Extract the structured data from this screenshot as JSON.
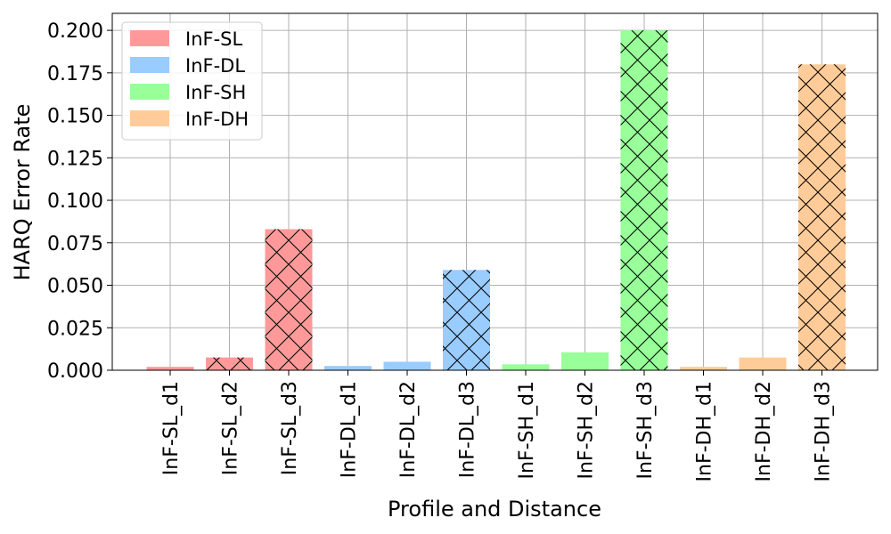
{
  "chart_data": {
    "type": "bar",
    "xlabel": "Profile and Distance",
    "ylabel": "HARQ Error Rate",
    "ylim": [
      0,
      0.21
    ],
    "yticks": [
      0.0,
      0.025,
      0.05,
      0.075,
      0.1,
      0.125,
      0.15,
      0.175,
      0.2
    ],
    "ytick_labels": [
      "0.000",
      "0.025",
      "0.050",
      "0.075",
      "0.100",
      "0.125",
      "0.150",
      "0.175",
      "0.200"
    ],
    "grid": true,
    "legend_position": "top-left",
    "categories": [
      "InF-SL_d1",
      "InF-SL_d2",
      "InF-SL_d3",
      "InF-DL_d1",
      "InF-DL_d2",
      "InF-DL_d3",
      "InF-SH_d1",
      "InF-SH_d2",
      "InF-SH_d3",
      "InF-DH_d1",
      "InF-DH_d2",
      "InF-DH_d3"
    ],
    "values": [
      0.002,
      0.0075,
      0.083,
      0.0025,
      0.005,
      0.059,
      0.0035,
      0.0105,
      0.2,
      0.002,
      0.0075,
      0.18
    ],
    "hatched": [
      false,
      true,
      true,
      false,
      false,
      true,
      false,
      false,
      true,
      false,
      false,
      true
    ],
    "bar_group": [
      0,
      0,
      0,
      1,
      1,
      1,
      2,
      2,
      2,
      3,
      3,
      3
    ],
    "series": [
      {
        "name": "InF-SL",
        "color": "#ff9999"
      },
      {
        "name": "InF-DL",
        "color": "#99ccff"
      },
      {
        "name": "InF-SH",
        "color": "#99ff99"
      },
      {
        "name": "InF-DH",
        "color": "#ffcc99"
      }
    ]
  }
}
